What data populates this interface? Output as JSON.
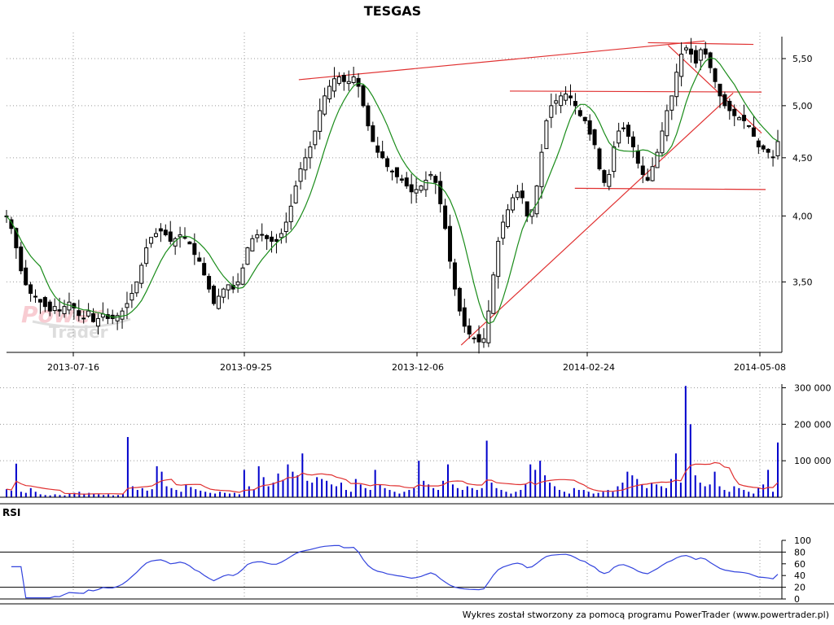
{
  "chart_data": [
    {
      "type": "candlestick",
      "title": "TESGAS",
      "x_tick_labels": [
        "2013-07-16",
        "2013-09-25",
        "2013-12-06",
        "2014-02-24",
        "2014-05-08"
      ],
      "y_ticks": [
        3.5,
        4.0,
        4.5,
        5.0,
        5.5
      ],
      "y_tick_labels": [
        "3,50",
        "4,00",
        "4,50",
        "5,00",
        "5,50"
      ],
      "y_range": [
        3.05,
        5.75
      ],
      "y_scale": "log",
      "grid": true,
      "close": [
        4.0,
        3.9,
        3.75,
        3.58,
        3.48,
        3.42,
        3.4,
        3.36,
        3.33,
        3.3,
        3.33,
        3.3,
        3.33,
        3.36,
        3.32,
        3.27,
        3.25,
        3.3,
        3.23,
        3.25,
        3.28,
        3.25,
        3.25,
        3.27,
        3.3,
        3.35,
        3.42,
        3.5,
        3.62,
        3.75,
        3.83,
        3.86,
        3.88,
        3.85,
        3.8,
        3.82,
        3.85,
        3.83,
        3.78,
        3.7,
        3.65,
        3.55,
        3.45,
        3.35,
        3.4,
        3.45,
        3.48,
        3.45,
        3.5,
        3.6,
        3.75,
        3.82,
        3.85,
        3.85,
        3.82,
        3.8,
        3.8,
        3.86,
        3.95,
        4.08,
        4.25,
        4.4,
        4.5,
        4.6,
        4.75,
        4.95,
        5.1,
        5.2,
        5.28,
        5.3,
        5.25,
        5.25,
        5.3,
        5.2,
        5.0,
        4.8,
        4.65,
        4.55,
        4.5,
        4.42,
        4.38,
        4.33,
        4.3,
        4.25,
        4.2,
        4.22,
        4.25,
        4.3,
        4.35,
        4.28,
        4.1,
        3.9,
        3.65,
        3.45,
        3.3,
        3.2,
        3.15,
        3.12,
        3.1,
        3.12,
        3.3,
        3.55,
        3.8,
        3.95,
        4.05,
        4.15,
        4.2,
        4.15,
        4.0,
        4.05,
        4.25,
        4.55,
        4.85,
        5.0,
        5.05,
        5.1,
        5.12,
        5.08,
        5.0,
        4.9,
        4.85,
        4.72,
        4.62,
        4.4,
        4.28,
        4.35,
        4.6,
        4.75,
        4.78,
        4.7,
        4.6,
        4.45,
        4.35,
        4.3,
        4.42,
        4.55,
        4.75,
        4.95,
        5.1,
        5.35,
        5.55,
        5.62,
        5.55,
        5.45,
        5.6,
        5.55,
        5.4,
        5.25,
        5.1,
        5.0,
        4.95,
        4.9,
        4.88,
        4.85,
        4.8,
        4.7,
        4.6,
        4.58,
        4.55,
        4.5,
        4.65
      ],
      "volume_panel": {
        "y_ticks": [
          100000,
          200000,
          300000
        ],
        "y_tick_labels": [
          "100 000",
          "200 000",
          "300 000"
        ],
        "y_range": [
          0,
          310000
        ],
        "bar_color": "#0000cc",
        "average_color": "#e03030",
        "volume": [
          22000,
          18000,
          92000,
          15000,
          12000,
          25000,
          15000,
          8000,
          6000,
          5000,
          8000,
          6000,
          5000,
          10000,
          12000,
          15000,
          10000,
          12000,
          10000,
          8000,
          6000,
          8000,
          5000,
          6000,
          10000,
          165000,
          30000,
          20000,
          25000,
          18000,
          22000,
          85000,
          70000,
          30000,
          25000,
          20000,
          15000,
          35000,
          28000,
          22000,
          18000,
          15000,
          12000,
          10000,
          15000,
          12000,
          10000,
          12000,
          8000,
          75000,
          30000,
          22000,
          85000,
          55000,
          30000,
          40000,
          65000,
          48000,
          90000,
          70000,
          60000,
          120000,
          45000,
          40000,
          55000,
          50000,
          45000,
          35000,
          30000,
          40000,
          20000,
          15000,
          50000,
          35000,
          25000,
          20000,
          75000,
          35000,
          25000,
          20000,
          15000,
          10000,
          15000,
          20000,
          25000,
          100000,
          45000,
          35000,
          25000,
          20000,
          45000,
          90000,
          35000,
          25000,
          20000,
          30000,
          25000,
          20000,
          25000,
          155000,
          40000,
          25000,
          20000,
          15000,
          10000,
          15000,
          20000,
          35000,
          90000,
          75000,
          100000,
          60000,
          40000,
          30000,
          20000,
          15000,
          10000,
          25000,
          20000,
          20000,
          15000,
          10000,
          12000,
          15000,
          20000,
          15000,
          30000,
          40000,
          70000,
          60000,
          50000,
          35000,
          25000,
          40000,
          35000,
          30000,
          25000,
          50000,
          120000,
          40000,
          305000,
          200000,
          60000,
          40000,
          30000,
          35000,
          70000,
          30000,
          20000,
          15000,
          30000,
          25000,
          20000,
          15000,
          10000,
          25000,
          35000,
          75000,
          15000,
          150000
        ]
      },
      "rsi_panel": {
        "label": "RSI",
        "y_ticks": [
          0,
          20,
          40,
          60,
          80,
          100
        ],
        "y_tick_labels": [
          "0",
          "20",
          "40",
          "60",
          "80",
          "100"
        ],
        "y_range": [
          0,
          100
        ],
        "reference_levels": [
          20,
          80
        ],
        "line_color": "#3344dd"
      },
      "moving_average_color": "#1a8c1a",
      "trendline_color": "#e03030",
      "candle_color": "#000000"
    }
  ],
  "watermark": {
    "word1": "Power",
    "word2": "Trader"
  },
  "footer": {
    "credit": "Wykres został stworzony za pomocą programu PowerTrader (www.powertrader.pl)"
  }
}
